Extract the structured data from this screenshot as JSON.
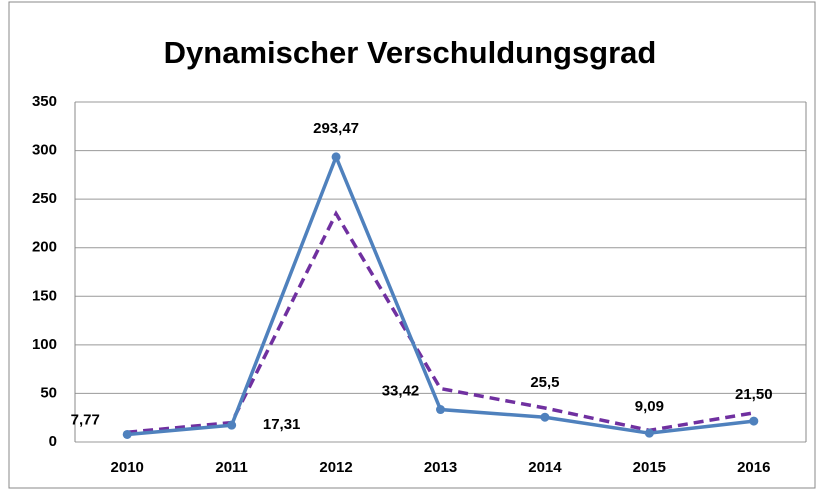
{
  "chart_data": {
    "type": "line",
    "title": "Dynamischer Verschuldungsgrad",
    "categories": [
      "2010",
      "2011",
      "2012",
      "2013",
      "2014",
      "2015",
      "2016"
    ],
    "series": [
      {
        "color": "#4f81bd",
        "dash": false,
        "markers": true,
        "values": [
          7.77,
          17.31,
          293.47,
          33.42,
          25.5,
          9.09,
          21.5
        ],
        "value_labels": [
          "7,77",
          "17,31",
          "293,47",
          "33,42",
          "25,5",
          "9,09",
          "21,50"
        ]
      },
      {
        "color": "#7030a0",
        "dash": true,
        "markers": false,
        "values": [
          10,
          20,
          235,
          55,
          35,
          12,
          30
        ]
      }
    ],
    "ylim": [
      0,
      350
    ],
    "yticks": [
      0,
      50,
      100,
      150,
      200,
      250,
      300,
      350
    ],
    "grid": true
  }
}
